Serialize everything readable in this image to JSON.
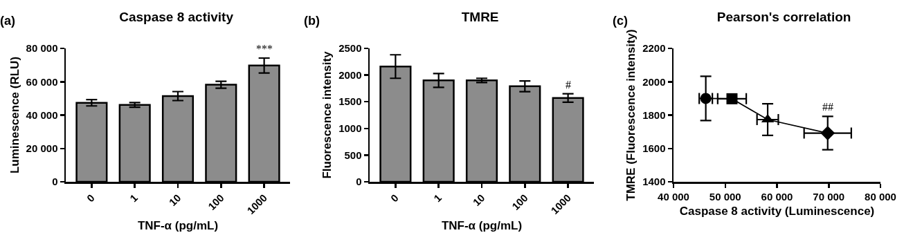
{
  "chart_data": [
    {
      "type": "bar",
      "title": "Caspase 8 activity",
      "xlabel": "TNF-α (pg/mL)",
      "ylabel": "Luminescence (RLU)",
      "annotations": [
        "(a)",
        "***"
      ],
      "categories": [
        "0",
        "1",
        "10",
        "100",
        "1000"
      ],
      "values": [
        47400,
        46100,
        51400,
        58200,
        69700
      ],
      "errors": [
        1900,
        1400,
        2700,
        2100,
        4500
      ],
      "color": "#8c8c8c",
      "ylim": [
        0,
        80000
      ],
      "yticks": [
        0,
        {
          "value": 20000,
          "label": "20 000"
        },
        {
          "value": 40000,
          "label": "40 000"
        },
        {
          "value": 60000,
          "label": "60 000"
        },
        {
          "value": 80000,
          "label": "80 000"
        }
      ]
    },
    {
      "type": "bar",
      "title": "TMRE",
      "xlabel": "TNF-α (pg/mL)",
      "ylabel": "Fluorescence intensity",
      "annotations": [
        "(b)",
        "#"
      ],
      "categories": [
        "0",
        "1",
        "10",
        "100",
        "1000"
      ],
      "values": [
        2160,
        1900,
        1900,
        1790,
        1570
      ],
      "errors": [
        220,
        130,
        40,
        100,
        80
      ],
      "color": "#8c8c8c",
      "ylim": [
        0,
        2500
      ],
      "yticks": [
        0,
        500,
        1000,
        1500,
        2000,
        2500
      ]
    },
    {
      "type": "line",
      "title": "Pearson's correlation",
      "xlabel": "Caspase 8 activity (Luminescence)",
      "ylabel": "TMRE (Fluorescence intensity)",
      "annotations": [
        "(c)",
        "##"
      ],
      "x": [
        46240,
        51300,
        58200,
        69800
      ],
      "values": [
        1900,
        1898,
        1773,
        1692
      ],
      "errors": [
        133,
        null,
        95,
        100
      ],
      "xerrors": [
        1270,
        2760,
        2060,
        4560
      ],
      "color": "#000000",
      "marker": [
        "circle",
        "square",
        "triangle",
        "diamond"
      ],
      "xlim": [
        40000,
        80000
      ],
      "xticks": [
        {
          "value": 40000,
          "label": "40 000"
        },
        {
          "value": 50000,
          "label": "50 000"
        },
        {
          "value": 60000,
          "label": "60 000"
        },
        {
          "value": 70000,
          "label": "70 000"
        },
        {
          "value": 80000,
          "label": "80 000"
        }
      ],
      "ylim": [
        1400,
        2200
      ],
      "yticks": [
        1400,
        1600,
        1800,
        2000,
        2200
      ]
    }
  ]
}
